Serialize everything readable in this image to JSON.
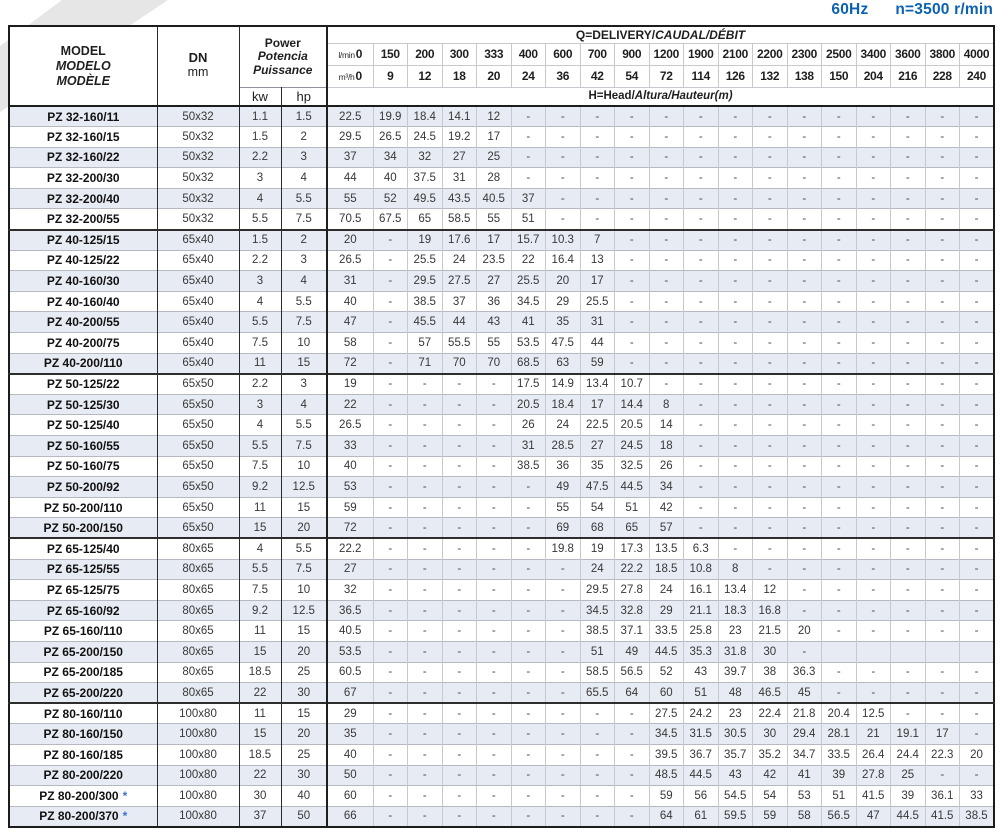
{
  "header_right": {
    "frequency": "60Hz",
    "speed": "n=3500 r/min"
  },
  "colors": {
    "accent_blue": "#0b62b2",
    "stripe_row": "#e7ebf3",
    "border_dark": "#1c1c1c",
    "border_light": "#c6c9cf",
    "asterisk_blue": "#3f6fd1"
  },
  "table": {
    "header": {
      "model_lines": [
        "MODEL",
        "MODELO",
        "MODÈLE"
      ],
      "dn_label": "DN",
      "dn_unit": "mm",
      "power_lines": [
        "Power",
        "Potencia",
        "Puissance"
      ],
      "kw_label": "kw",
      "hp_label": "hp",
      "q_title": "Q=DELIVERY/",
      "q_title_italic": "CAUDAL/DÉBIT",
      "flow_unit_lmin": "l/min",
      "flow_unit_m3h": "m³/h",
      "lmin_values": [
        "0",
        "150",
        "200",
        "300",
        "333",
        "400",
        "600",
        "700",
        "900",
        "1200",
        "1900",
        "2100",
        "2200",
        "2300",
        "2500",
        "3400",
        "3600",
        "3800",
        "4000"
      ],
      "m3h_values": [
        "0",
        "9",
        "12",
        "18",
        "20",
        "24",
        "36",
        "42",
        "54",
        "72",
        "114",
        "126",
        "132",
        "138",
        "150",
        "204",
        "216",
        "228",
        "240"
      ],
      "head_title": "H=Head/",
      "head_title_italic": "Altura/Hauteur(m)"
    },
    "rows": [
      {
        "model": "PZ 32-160/11",
        "dn": "50x32",
        "kw": "1.1",
        "hp": "1.5",
        "values": [
          "22.5",
          "19.9",
          "18.4",
          "14.1",
          "12",
          "-",
          "-",
          "-",
          "-",
          "-",
          "-",
          "-",
          "-",
          "-",
          "-",
          "-",
          "-",
          "-",
          "-"
        ]
      },
      {
        "model": "PZ 32-160/15",
        "dn": "50x32",
        "kw": "1.5",
        "hp": "2",
        "values": [
          "29.5",
          "26.5",
          "24.5",
          "19.2",
          "17",
          "-",
          "-",
          "-",
          "-",
          "-",
          "-",
          "-",
          "-",
          "-",
          "-",
          "-",
          "-",
          "-",
          "-"
        ]
      },
      {
        "model": "PZ 32-160/22",
        "dn": "50x32",
        "kw": "2.2",
        "hp": "3",
        "values": [
          "37",
          "34",
          "32",
          "27",
          "25",
          "-",
          "-",
          "-",
          "-",
          "-",
          "-",
          "-",
          "-",
          "-",
          "-",
          "-",
          "-",
          "-",
          "-"
        ]
      },
      {
        "model": "PZ 32-200/30",
        "dn": "50x32",
        "kw": "3",
        "hp": "4",
        "values": [
          "44",
          "40",
          "37.5",
          "31",
          "28",
          "-",
          "-",
          "-",
          "-",
          "-",
          "-",
          "-",
          "-",
          "-",
          "-",
          "-",
          "-",
          "-",
          "-"
        ]
      },
      {
        "model": "PZ 32-200/40",
        "dn": "50x32",
        "kw": "4",
        "hp": "5.5",
        "values": [
          "55",
          "52",
          "49.5",
          "43.5",
          "40.5",
          "37",
          "-",
          "-",
          "-",
          "-",
          "-",
          "-",
          "-",
          "-",
          "-",
          "-",
          "-",
          "-",
          "-"
        ]
      },
      {
        "model": "PZ 32-200/55",
        "dn": "50x32",
        "kw": "5.5",
        "hp": "7.5",
        "values": [
          "70.5",
          "67.5",
          "65",
          "58.5",
          "55",
          "51",
          "-",
          "-",
          "-",
          "-",
          "-",
          "-",
          "-",
          "-",
          "-",
          "-",
          "-",
          "-",
          "-"
        ]
      },
      {
        "model": "PZ 40-125/15",
        "dn": "65x40",
        "kw": "1.5",
        "hp": "2",
        "values": [
          "20",
          "-",
          "19",
          "17.6",
          "17",
          "15.7",
          "10.3",
          "7",
          "-",
          "-",
          "-",
          "-",
          "-",
          "-",
          "-",
          "-",
          "-",
          "-",
          "-"
        ]
      },
      {
        "model": "PZ 40-125/22",
        "dn": "65x40",
        "kw": "2.2",
        "hp": "3",
        "values": [
          "26.5",
          "-",
          "25.5",
          "24",
          "23.5",
          "22",
          "16.4",
          "13",
          "-",
          "-",
          "-",
          "-",
          "-",
          "-",
          "-",
          "-",
          "-",
          "-",
          "-"
        ]
      },
      {
        "model": "PZ 40-160/30",
        "dn": "65x40",
        "kw": "3",
        "hp": "4",
        "values": [
          "31",
          "-",
          "29.5",
          "27.5",
          "27",
          "25.5",
          "20",
          "17",
          "-",
          "-",
          "-",
          "-",
          "-",
          "-",
          "-",
          "-",
          "-",
          "-",
          "-"
        ]
      },
      {
        "model": "PZ 40-160/40",
        "dn": "65x40",
        "kw": "4",
        "hp": "5.5",
        "values": [
          "40",
          "-",
          "38.5",
          "37",
          "36",
          "34.5",
          "29",
          "25.5",
          "-",
          "-",
          "-",
          "-",
          "-",
          "-",
          "-",
          "-",
          "-",
          "-",
          "-"
        ]
      },
      {
        "model": "PZ 40-200/55",
        "dn": "65x40",
        "kw": "5.5",
        "hp": "7.5",
        "values": [
          "47",
          "-",
          "45.5",
          "44",
          "43",
          "41",
          "35",
          "31",
          "-",
          "-",
          "-",
          "-",
          "-",
          "-",
          "-",
          "-",
          "-",
          "-",
          "-"
        ]
      },
      {
        "model": "PZ 40-200/75",
        "dn": "65x40",
        "kw": "7.5",
        "hp": "10",
        "values": [
          "58",
          "-",
          "57",
          "55.5",
          "55",
          "53.5",
          "47.5",
          "44",
          "-",
          "-",
          "-",
          "-",
          "-",
          "-",
          "-",
          "-",
          "-",
          "-",
          "-"
        ]
      },
      {
        "model": "PZ 40-200/110",
        "dn": "65x40",
        "kw": "11",
        "hp": "15",
        "values": [
          "72",
          "-",
          "71",
          "70",
          "70",
          "68.5",
          "63",
          "59",
          "-",
          "-",
          "-",
          "-",
          "-",
          "-",
          "-",
          "-",
          "-",
          "-",
          "-"
        ]
      },
      {
        "model": "PZ 50-125/22",
        "dn": "65x50",
        "kw": "2.2",
        "hp": "3",
        "values": [
          "19",
          "-",
          "-",
          "-",
          "-",
          "17.5",
          "14.9",
          "13.4",
          "10.7",
          "-",
          "-",
          "-",
          "-",
          "-",
          "-",
          "-",
          "-",
          "-",
          "-"
        ]
      },
      {
        "model": "PZ 50-125/30",
        "dn": "65x50",
        "kw": "3",
        "hp": "4",
        "values": [
          "22",
          "-",
          "-",
          "-",
          "-",
          "20.5",
          "18.4",
          "17",
          "14.4",
          "8",
          "-",
          "-",
          "-",
          "-",
          "-",
          "-",
          "-",
          "-",
          "-"
        ]
      },
      {
        "model": "PZ 50-125/40",
        "dn": "65x50",
        "kw": "4",
        "hp": "5.5",
        "values": [
          "26.5",
          "-",
          "-",
          "-",
          "-",
          "26",
          "24",
          "22.5",
          "20.5",
          "14",
          "-",
          "-",
          "-",
          "-",
          "-",
          "-",
          "-",
          "-",
          "-"
        ]
      },
      {
        "model": "PZ 50-160/55",
        "dn": "65x50",
        "kw": "5.5",
        "hp": "7.5",
        "values": [
          "33",
          "-",
          "-",
          "-",
          "-",
          "31",
          "28.5",
          "27",
          "24.5",
          "18",
          "-",
          "-",
          "-",
          "-",
          "-",
          "-",
          "-",
          "-",
          "-"
        ]
      },
      {
        "model": "PZ 50-160/75",
        "dn": "65x50",
        "kw": "7.5",
        "hp": "10",
        "values": [
          "40",
          "-",
          "-",
          "-",
          "-",
          "38.5",
          "36",
          "35",
          "32.5",
          "26",
          "-",
          "-",
          "-",
          "-",
          "-",
          "-",
          "-",
          "-",
          "-"
        ]
      },
      {
        "model": "PZ 50-200/92",
        "dn": "65x50",
        "kw": "9.2",
        "hp": "12.5",
        "values": [
          "53",
          "-",
          "-",
          "-",
          "-",
          "-",
          "49",
          "47.5",
          "44.5",
          "34",
          "-",
          "-",
          "-",
          "-",
          "-",
          "-",
          "-",
          "-",
          "-"
        ]
      },
      {
        "model": "PZ 50-200/110",
        "dn": "65x50",
        "kw": "11",
        "hp": "15",
        "values": [
          "59",
          "-",
          "-",
          "-",
          "-",
          "-",
          "55",
          "54",
          "51",
          "42",
          "-",
          "-",
          "-",
          "-",
          "-",
          "-",
          "-",
          "-",
          "-"
        ]
      },
      {
        "model": "PZ 50-200/150",
        "dn": "65x50",
        "kw": "15",
        "hp": "20",
        "values": [
          "72",
          "-",
          "-",
          "-",
          "-",
          "-",
          "69",
          "68",
          "65",
          "57",
          "-",
          "-",
          "-",
          "-",
          "-",
          "-",
          "-",
          "-",
          "-"
        ]
      },
      {
        "model": "PZ 65-125/40",
        "dn": "80x65",
        "kw": "4",
        "hp": "5.5",
        "values": [
          "22.2",
          "-",
          "-",
          "-",
          "-",
          "-",
          "19.8",
          "19",
          "17.3",
          "13.5",
          "6.3",
          "-",
          "-",
          "-",
          "-",
          "-",
          "-",
          "-",
          "-"
        ]
      },
      {
        "model": "PZ 65-125/55",
        "dn": "80x65",
        "kw": "5.5",
        "hp": "7.5",
        "values": [
          "27",
          "-",
          "-",
          "-",
          "-",
          "-",
          "-",
          "24",
          "22.2",
          "18.5",
          "10.8",
          "8",
          "-",
          "-",
          "-",
          "-",
          "-",
          "-",
          "-"
        ]
      },
      {
        "model": "PZ 65-125/75",
        "dn": "80x65",
        "kw": "7.5",
        "hp": "10",
        "values": [
          "32",
          "-",
          "-",
          "-",
          "-",
          "-",
          "-",
          "29.5",
          "27.8",
          "24",
          "16.1",
          "13.4",
          "12",
          "-",
          "-",
          "-",
          "-",
          "-",
          "-"
        ]
      },
      {
        "model": "PZ 65-160/92",
        "dn": "80x65",
        "kw": "9.2",
        "hp": "12.5",
        "values": [
          "36.5",
          "-",
          "-",
          "-",
          "-",
          "-",
          "-",
          "34.5",
          "32.8",
          "29",
          "21.1",
          "18.3",
          "16.8",
          "-",
          "-",
          "-",
          "-",
          "-",
          "-"
        ]
      },
      {
        "model": "PZ 65-160/110",
        "dn": "80x65",
        "kw": "11",
        "hp": "15",
        "values": [
          "40.5",
          "-",
          "-",
          "-",
          "-",
          "-",
          "-",
          "38.5",
          "37.1",
          "33.5",
          "25.8",
          "23",
          "21.5",
          "20",
          "-",
          "-",
          "-",
          "-",
          "-"
        ]
      },
      {
        "model": "PZ 65-200/150",
        "dn": "80x65",
        "kw": "15",
        "hp": "20",
        "values": [
          "53.5",
          "-",
          "-",
          "-",
          "-",
          "-",
          "-",
          "51",
          "49",
          "44.5",
          "35.3",
          "31.8",
          "30",
          "-",
          "",
          "",
          "",
          "",
          ""
        ]
      },
      {
        "model": "PZ 65-200/185",
        "dn": "80x65",
        "kw": "18.5",
        "hp": "25",
        "values": [
          "60.5",
          "-",
          "-",
          "-",
          "-",
          "-",
          "-",
          "58.5",
          "56.5",
          "52",
          "43",
          "39.7",
          "38",
          "36.3",
          "-",
          "-",
          "-",
          "-",
          "-"
        ]
      },
      {
        "model": "PZ 65-200/220",
        "dn": "80x65",
        "kw": "22",
        "hp": "30",
        "values": [
          "67",
          "-",
          "-",
          "-",
          "-",
          "-",
          "-",
          "65.5",
          "64",
          "60",
          "51",
          "48",
          "46.5",
          "45",
          "-",
          "-",
          "-",
          "-",
          "-"
        ]
      },
      {
        "model": "PZ 80-160/110",
        "dn": "100x80",
        "kw": "11",
        "hp": "15",
        "values": [
          "29",
          "-",
          "-",
          "-",
          "-",
          "-",
          "-",
          "-",
          "-",
          "27.5",
          "24.2",
          "23",
          "22.4",
          "21.8",
          "20.4",
          "12.5",
          "-",
          "-",
          "-"
        ]
      },
      {
        "model": "PZ 80-160/150",
        "dn": "100x80",
        "kw": "15",
        "hp": "20",
        "values": [
          "35",
          "-",
          "-",
          "-",
          "-",
          "-",
          "-",
          "-",
          "-",
          "34.5",
          "31.5",
          "30.5",
          "30",
          "29.4",
          "28.1",
          "21",
          "19.1",
          "17",
          "-"
        ]
      },
      {
        "model": "PZ 80-160/185",
        "dn": "100x80",
        "kw": "18.5",
        "hp": "25",
        "values": [
          "40",
          "-",
          "-",
          "-",
          "-",
          "-",
          "-",
          "-",
          "-",
          "39.5",
          "36.7",
          "35.7",
          "35.2",
          "34.7",
          "33.5",
          "26.4",
          "24.4",
          "22.3",
          "20"
        ]
      },
      {
        "model": "PZ 80-200/220",
        "dn": "100x80",
        "kw": "22",
        "hp": "30",
        "values": [
          "50",
          "-",
          "-",
          "-",
          "-",
          "-",
          "-",
          "-",
          "-",
          "48.5",
          "44.5",
          "43",
          "42",
          "41",
          "39",
          "27.8",
          "25",
          "-",
          "-"
        ]
      },
      {
        "model": "PZ 80-200/300",
        "star": "*",
        "dn": "100x80",
        "kw": "30",
        "hp": "40",
        "values": [
          "60",
          "-",
          "-",
          "-",
          "-",
          "-",
          "-",
          "-",
          "-",
          "59",
          "56",
          "54.5",
          "54",
          "53",
          "51",
          "41.5",
          "39",
          "36.1",
          "33"
        ]
      },
      {
        "model": "PZ 80-200/370",
        "star": "*",
        "dn": "100x80",
        "kw": "37",
        "hp": "50",
        "values": [
          "66",
          "-",
          "-",
          "-",
          "-",
          "-",
          "-",
          "-",
          "-",
          "64",
          "61",
          "59.5",
          "59",
          "58",
          "56.5",
          "47",
          "44.5",
          "41.5",
          "38.5"
        ]
      }
    ]
  }
}
